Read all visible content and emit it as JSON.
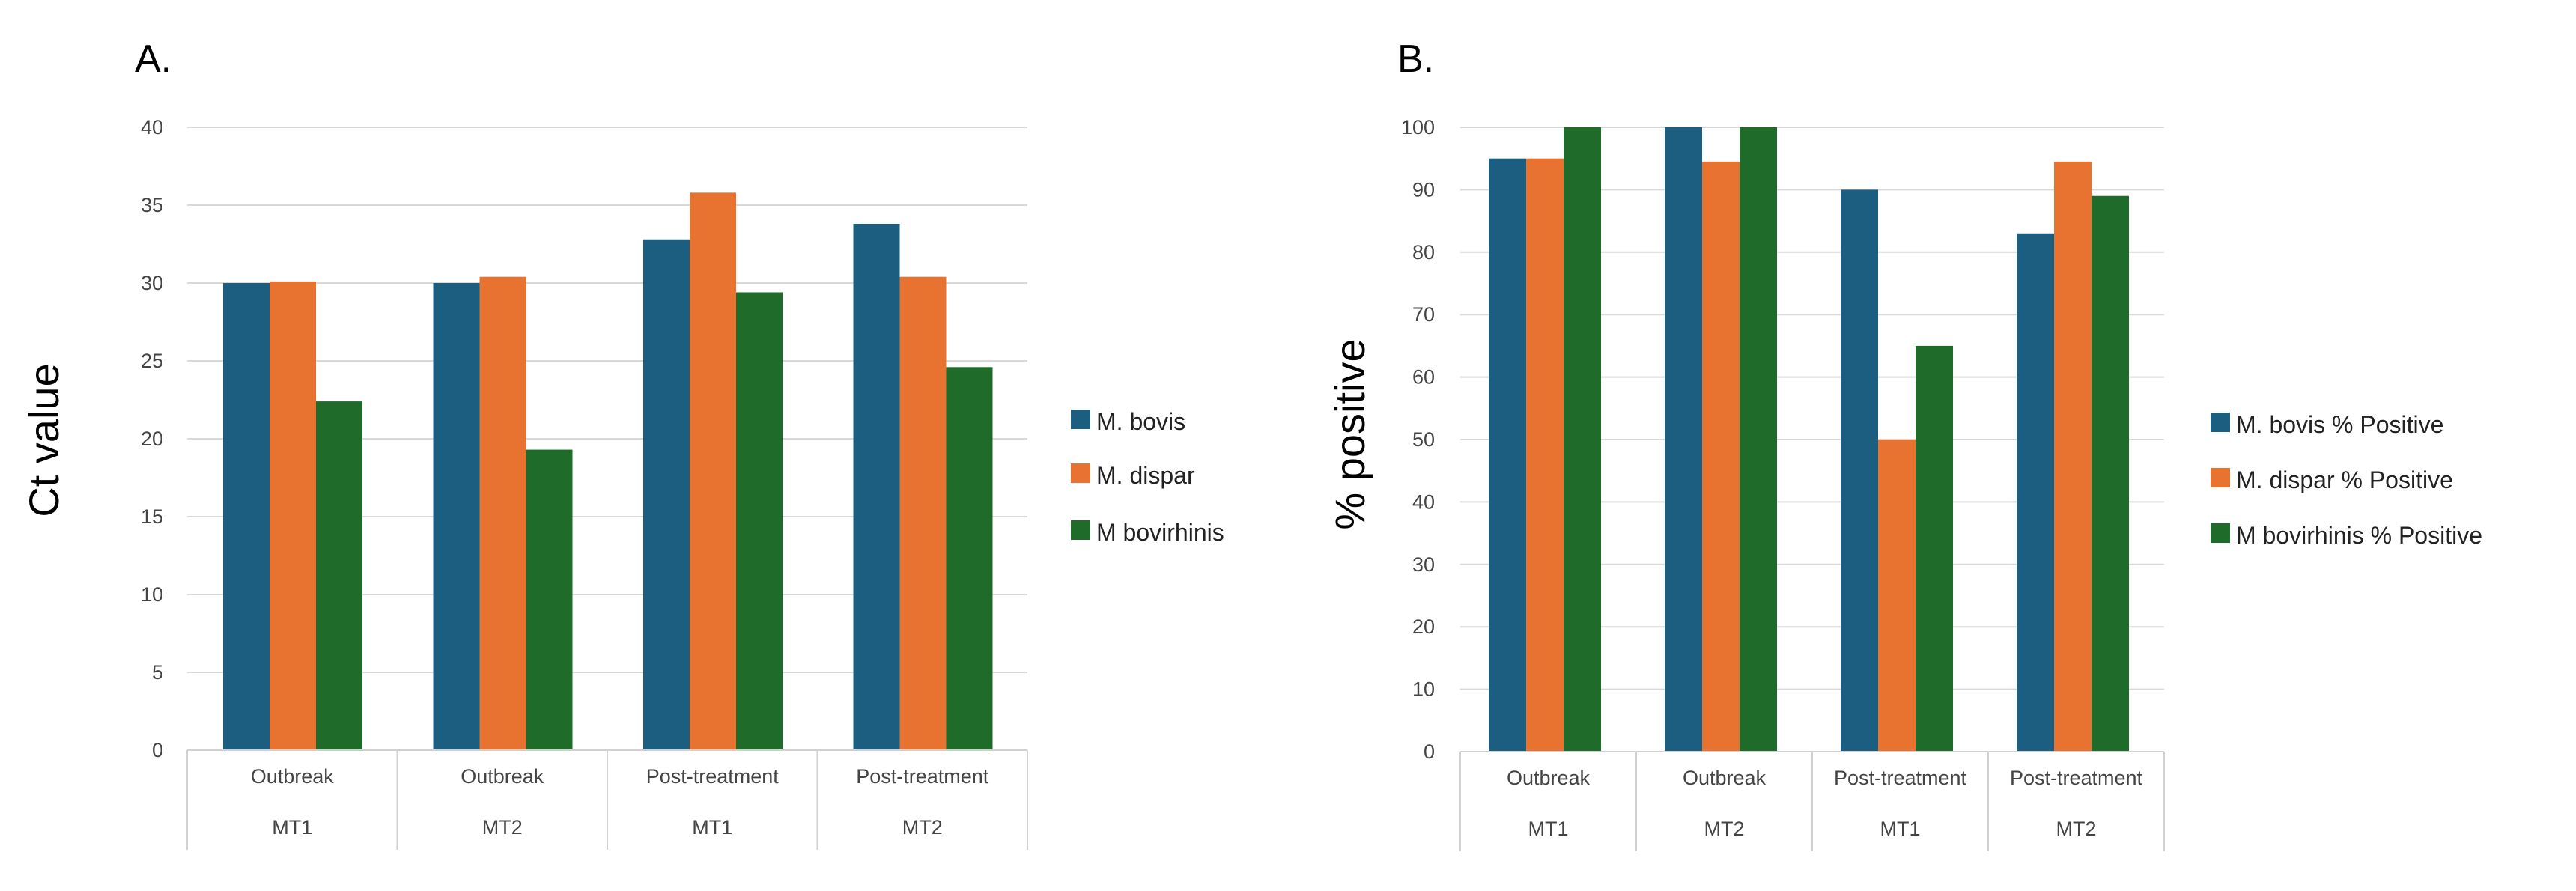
{
  "chart_data": [
    {
      "panel_label": "A.",
      "type": "bar",
      "title": "",
      "xlabel": "",
      "ylabel": "Ct value",
      "ylim": [
        0,
        40
      ],
      "yticks": [
        0,
        5,
        10,
        15,
        20,
        25,
        30,
        35,
        40
      ],
      "grid": true,
      "legend_position": "right",
      "categories": [
        {
          "top": "Outbreak",
          "bottom": "MT1"
        },
        {
          "top": "Outbreak",
          "bottom": "MT2"
        },
        {
          "top": "Post-treatment",
          "bottom": "MT1"
        },
        {
          "top": "Post-treatment",
          "bottom": "MT2"
        }
      ],
      "series": [
        {
          "name": "M. bovis",
          "color": "#1b5e80",
          "values": [
            30,
            30,
            32.8,
            33.8
          ]
        },
        {
          "name": "M. dispar",
          "color": "#e87330",
          "values": [
            30.1,
            30.4,
            35.8,
            30.4
          ]
        },
        {
          "name": "M bovirhinis",
          "color": "#1e6b2a",
          "values": [
            22.4,
            19.3,
            29.4,
            24.6
          ]
        }
      ]
    },
    {
      "panel_label": "B.",
      "type": "bar",
      "title": "",
      "xlabel": "",
      "ylabel": "% positive",
      "ylim": [
        0,
        100
      ],
      "yticks": [
        0,
        10,
        20,
        30,
        40,
        50,
        60,
        70,
        80,
        90,
        100
      ],
      "grid": true,
      "legend_position": "right",
      "categories": [
        {
          "top": "Outbreak",
          "bottom": "MT1"
        },
        {
          "top": "Outbreak",
          "bottom": "MT2"
        },
        {
          "top": "Post-treatment",
          "bottom": "MT1"
        },
        {
          "top": "Post-treatment",
          "bottom": "MT2"
        }
      ],
      "series": [
        {
          "name": "M. bovis % Positive",
          "color": "#1b5e80",
          "values": [
            95,
            100,
            90,
            83
          ]
        },
        {
          "name": "M. dispar % Positive",
          "color": "#e87330",
          "values": [
            95,
            94.5,
            50,
            94.5
          ]
        },
        {
          "name": "M bovirhinis % Positive",
          "color": "#1e6b2a",
          "values": [
            100,
            100,
            65,
            89
          ]
        }
      ]
    }
  ]
}
